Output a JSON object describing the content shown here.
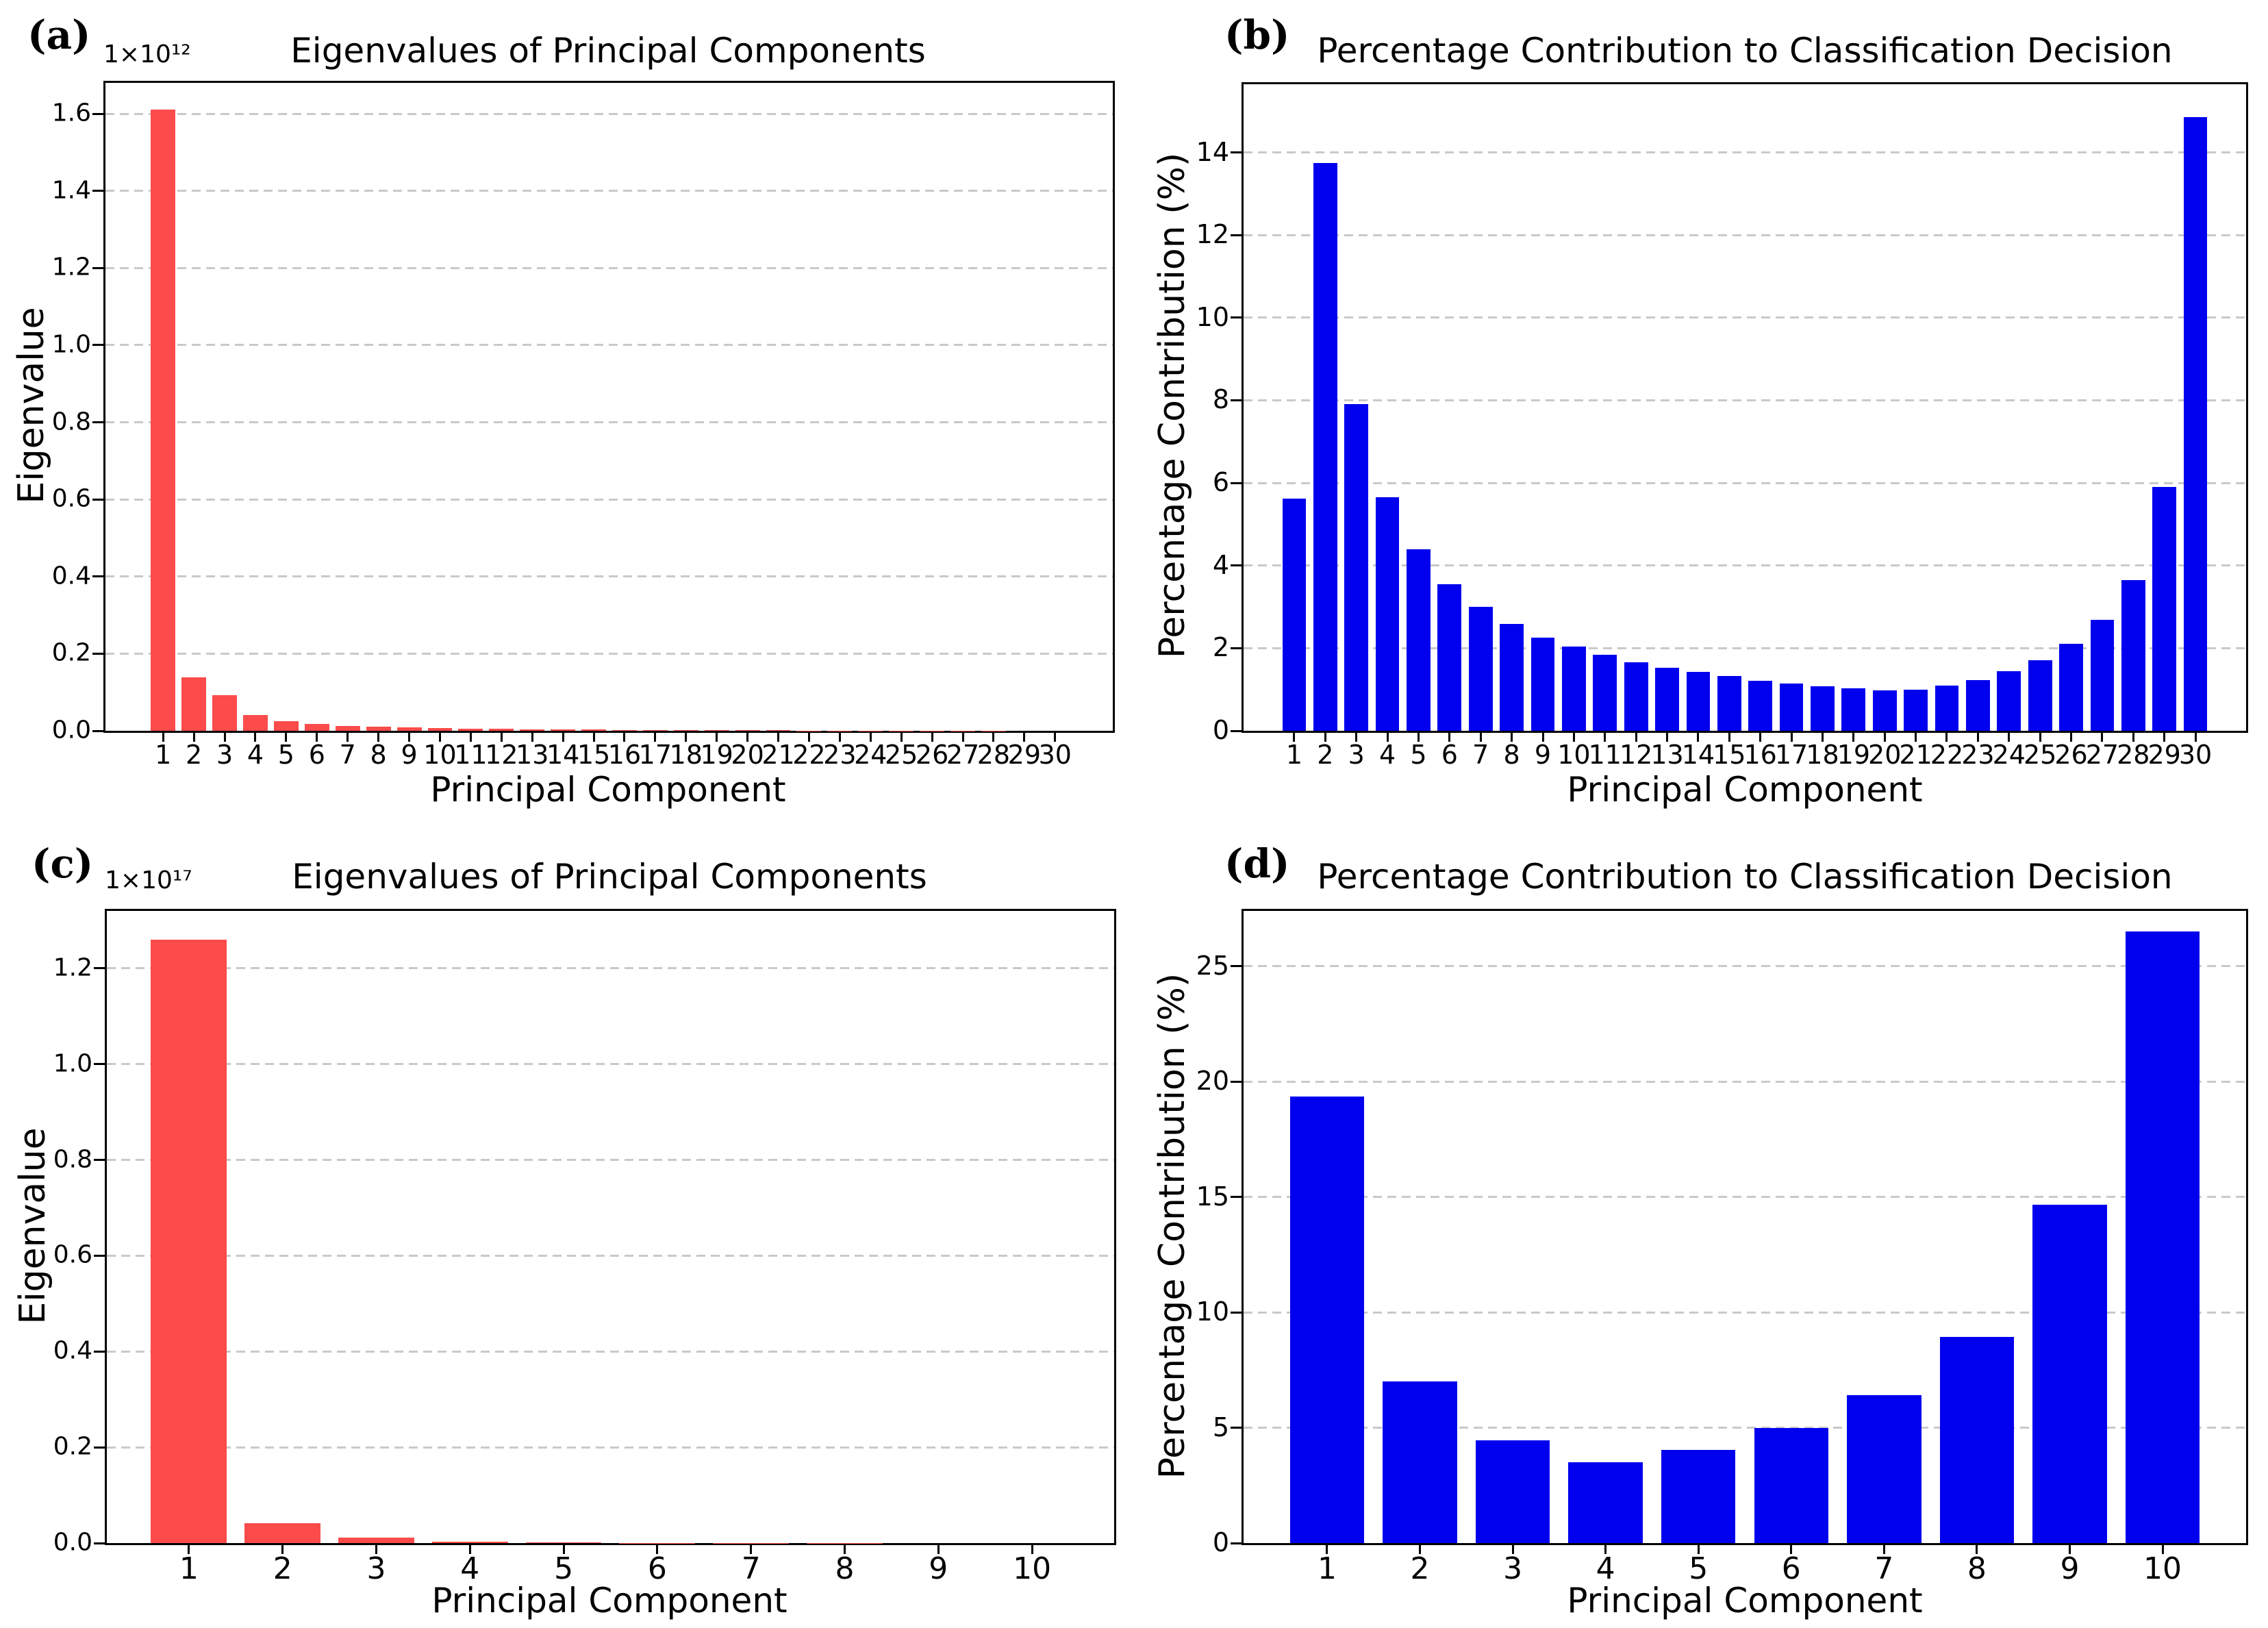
{
  "figure": {
    "background": "#ffffff",
    "grid_color": "#c9c9c9",
    "spine_color": "#000000"
  },
  "chart_data": [
    {
      "panel_label": "(a)",
      "type": "bar",
      "title": "Eigenvalues of Principal Components",
      "xlabel": "Principal Component",
      "ylabel": "Eigenvalue",
      "offset_text": "1×10¹²",
      "bar_color": "#FB4B4B",
      "legend": "none",
      "grid": "horizontal-dashed",
      "categories": [
        "1",
        "2",
        "3",
        "4",
        "5",
        "6",
        "7",
        "8",
        "9",
        "10",
        "11",
        "12",
        "13",
        "14",
        "15",
        "16",
        "17",
        "18",
        "19",
        "20",
        "21",
        "22",
        "23",
        "24",
        "25",
        "26",
        "27",
        "28",
        "29",
        "30"
      ],
      "values": [
        1.61,
        0.138,
        0.092,
        0.041,
        0.024,
        0.017,
        0.013,
        0.01,
        0.008,
        0.0067,
        0.0055,
        0.0045,
        0.0036,
        0.003,
        0.0027,
        0.0024,
        0.0021,
        0.0018,
        0.0015,
        0.0013,
        0.0011,
        0.0007,
        0.0005,
        0.0004,
        0.0003,
        0.0003,
        0.0002,
        0.0002,
        0.0001,
        0.0001
      ],
      "ylim": [
        0,
        1.68
      ],
      "yticks": [
        0,
        0.2,
        0.4,
        0.6,
        0.8,
        1.0,
        1.2,
        1.4,
        1.6
      ],
      "ytick_labels": [
        "0.0",
        "0.2",
        "0.4",
        "0.6",
        "0.8",
        "1.0",
        "1.2",
        "1.4",
        "1.6"
      ],
      "bar_width_frac": 0.8,
      "x_margin_frac": 0.042
    },
    {
      "panel_label": "(b)",
      "type": "bar",
      "title": "Percentage Contribution to Classification Decision",
      "xlabel": "Principal Component",
      "ylabel": "Percentage Contribution (%)",
      "bar_color": "#0000EE",
      "legend": "none",
      "grid": "horizontal-dashed",
      "categories": [
        "1",
        "2",
        "3",
        "4",
        "5",
        "6",
        "7",
        "8",
        "9",
        "10",
        "11",
        "12",
        "13",
        "14",
        "15",
        "16",
        "17",
        "18",
        "19",
        "20",
        "21",
        "22",
        "23",
        "24",
        "25",
        "26",
        "27",
        "28",
        "29",
        "30"
      ],
      "values": [
        5.62,
        13.75,
        7.9,
        5.65,
        4.4,
        3.55,
        3.0,
        2.58,
        2.25,
        2.04,
        1.84,
        1.65,
        1.52,
        1.42,
        1.32,
        1.21,
        1.15,
        1.08,
        1.02,
        0.98,
        1.0,
        1.09,
        1.22,
        1.45,
        1.7,
        2.11,
        2.68,
        3.64,
        5.9,
        14.85
      ],
      "ylim": [
        0,
        15.65
      ],
      "yticks": [
        0,
        2,
        4,
        6,
        8,
        10,
        12,
        14
      ],
      "ytick_labels": [
        "0",
        "2",
        "4",
        "6",
        "8",
        "10",
        "12",
        "14"
      ],
      "bar_width_frac": 0.765,
      "x_margin_frac": 0.035
    },
    {
      "panel_label": "(c)",
      "type": "bar",
      "title": "Eigenvalues of Principal Components",
      "xlabel": "Principal Component",
      "ylabel": "Eigenvalue",
      "offset_text": "1×10¹⁷",
      "bar_color": "#FB4B4B",
      "legend": "none",
      "grid": "horizontal-dashed",
      "categories": [
        "1",
        "2",
        "3",
        "4",
        "5",
        "6",
        "7",
        "8",
        "9",
        "10"
      ],
      "values": [
        1.26,
        0.041,
        0.011,
        0.003,
        0.001,
        0.0005,
        0.0003,
        0.0002,
        0.0001,
        0.0001
      ],
      "ylim": [
        0,
        1.32
      ],
      "yticks": [
        0,
        0.2,
        0.4,
        0.6,
        0.8,
        1.0,
        1.2
      ],
      "ytick_labels": [
        "0.0",
        "0.2",
        "0.4",
        "0.6",
        "0.8",
        "1.0",
        "1.2"
      ],
      "bar_width_frac": 0.81,
      "x_margin_frac": 0.035
    },
    {
      "panel_label": "(d)",
      "type": "bar",
      "title": "Percentage Contribution to Classification Decision",
      "xlabel": "Principal Component",
      "ylabel": "Percentage Contribution (%)",
      "bar_color": "#0000EE",
      "legend": "none",
      "grid": "horizontal-dashed",
      "categories": [
        "1",
        "2",
        "3",
        "4",
        "5",
        "6",
        "7",
        "8",
        "9",
        "10"
      ],
      "values": [
        19.35,
        7.0,
        4.45,
        3.5,
        4.05,
        5.0,
        6.4,
        8.95,
        14.65,
        26.5
      ],
      "ylim": [
        0,
        27.4
      ],
      "yticks": [
        0,
        5,
        10,
        15,
        20,
        25
      ],
      "ytick_labels": [
        "0",
        "5",
        "10",
        "15",
        "20",
        "25"
      ],
      "bar_width_frac": 0.8,
      "x_margin_frac": 0.037
    }
  ]
}
